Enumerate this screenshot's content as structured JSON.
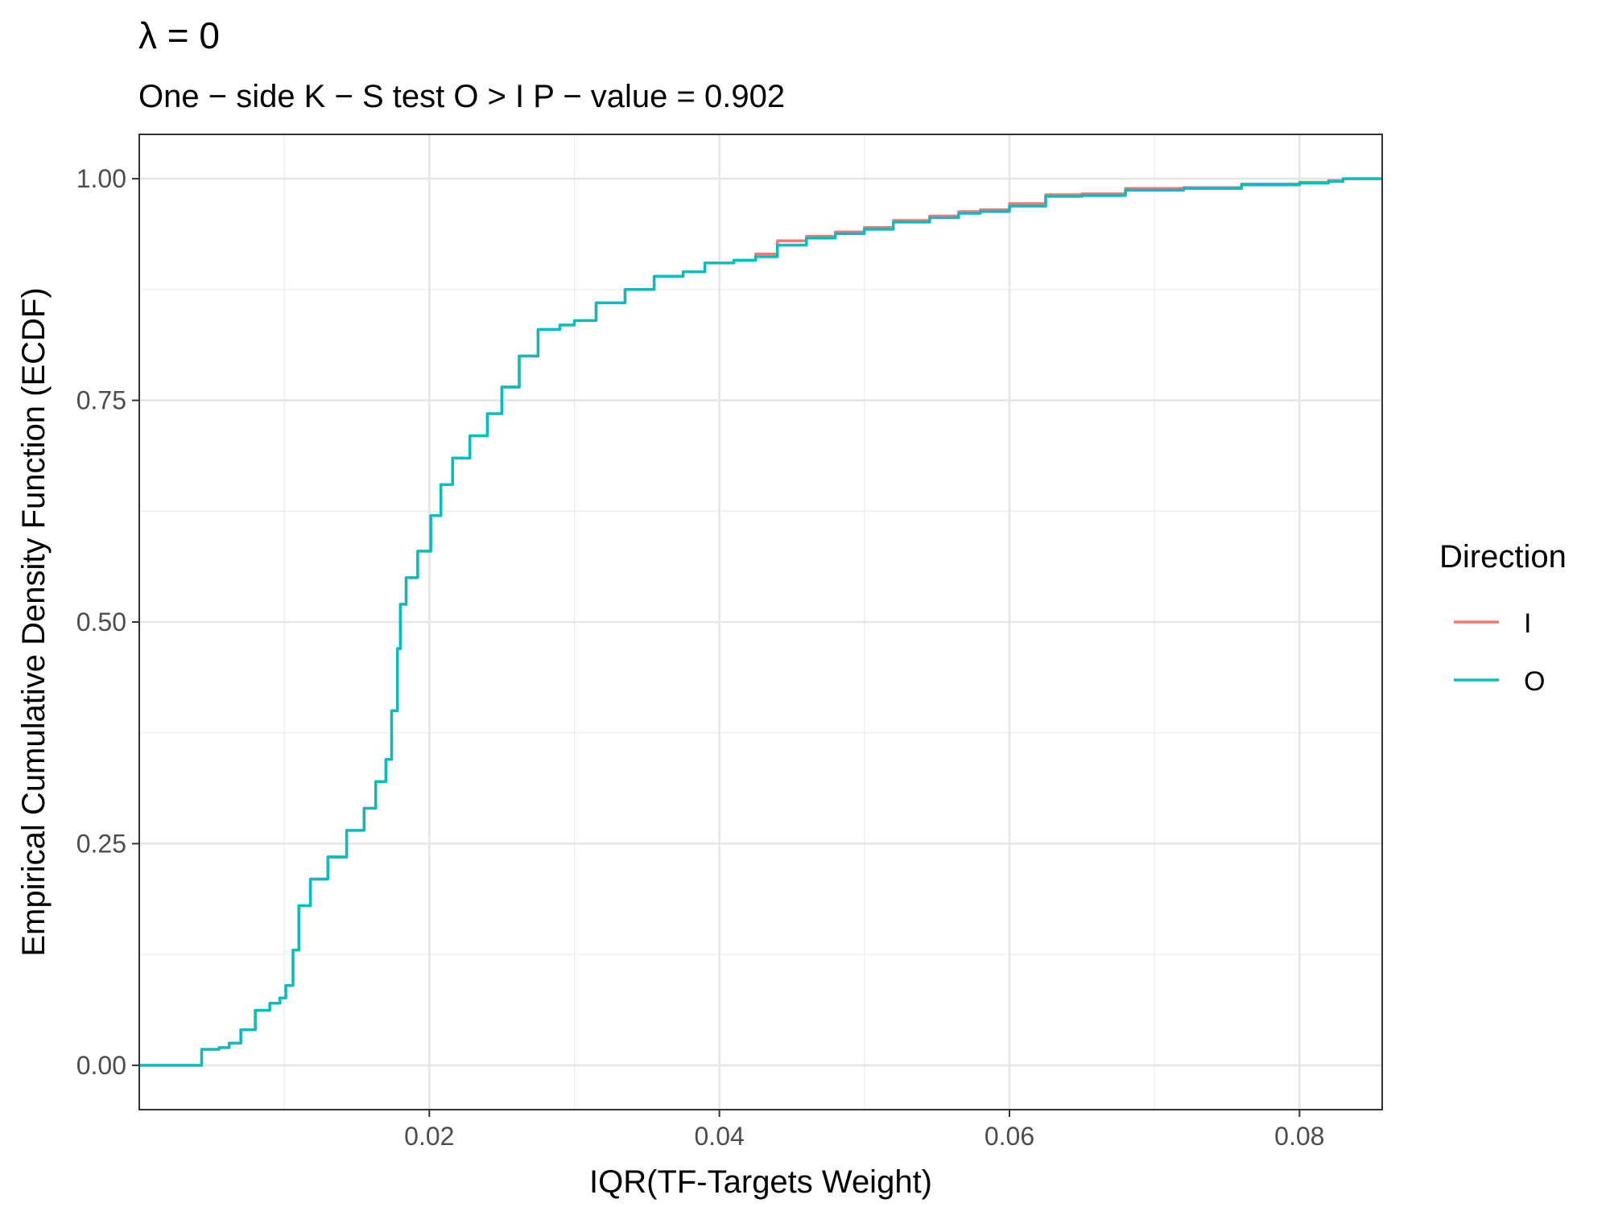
{
  "chart_data": {
    "type": "line",
    "title": "λ = 0",
    "subtitle": "One − side K − S test O > I P − value = 0.902",
    "xlabel": "IQR(TF-Targets Weight)",
    "ylabel": "Empirical Cumulative Density Function (ECDF)",
    "xlim": [
      0.0,
      0.0857
    ],
    "ylim": [
      -0.05,
      1.05
    ],
    "x_ticks": [
      0.02,
      0.04,
      0.06,
      0.08
    ],
    "x_tick_labels": [
      "0.02",
      "0.04",
      "0.06",
      "0.08"
    ],
    "y_ticks": [
      0.0,
      0.25,
      0.5,
      0.75,
      1.0
    ],
    "y_tick_labels": [
      "0.00",
      "0.25",
      "0.50",
      "0.75",
      "1.00"
    ],
    "grid": true,
    "legend": {
      "title": "Direction",
      "placement": "right",
      "entries": [
        {
          "label": "I",
          "color": "#F8766D"
        },
        {
          "label": "O",
          "color": "#00BFC4"
        }
      ]
    },
    "series": [
      {
        "name": "I",
        "color": "#F8766D",
        "points": [
          [
            0.0,
            0.0
          ],
          [
            0.0041,
            0.0
          ],
          [
            0.0043,
            0.018
          ],
          [
            0.0055,
            0.02
          ],
          [
            0.0062,
            0.025
          ],
          [
            0.007,
            0.04
          ],
          [
            0.008,
            0.062
          ],
          [
            0.009,
            0.07
          ],
          [
            0.0097,
            0.076
          ],
          [
            0.0101,
            0.09
          ],
          [
            0.0106,
            0.13
          ],
          [
            0.011,
            0.18
          ],
          [
            0.0118,
            0.21
          ],
          [
            0.013,
            0.235
          ],
          [
            0.0143,
            0.265
          ],
          [
            0.0155,
            0.29
          ],
          [
            0.0163,
            0.32
          ],
          [
            0.017,
            0.345
          ],
          [
            0.0174,
            0.4
          ],
          [
            0.0178,
            0.47
          ],
          [
            0.018,
            0.52
          ],
          [
            0.0184,
            0.55
          ],
          [
            0.0192,
            0.58
          ],
          [
            0.0201,
            0.62
          ],
          [
            0.0208,
            0.655
          ],
          [
            0.0216,
            0.685
          ],
          [
            0.0228,
            0.71
          ],
          [
            0.024,
            0.735
          ],
          [
            0.025,
            0.765
          ],
          [
            0.0262,
            0.8
          ],
          [
            0.0275,
            0.83
          ],
          [
            0.029,
            0.835
          ],
          [
            0.03,
            0.84
          ],
          [
            0.0315,
            0.86
          ],
          [
            0.0335,
            0.875
          ],
          [
            0.0355,
            0.89
          ],
          [
            0.0375,
            0.895
          ],
          [
            0.039,
            0.905
          ],
          [
            0.041,
            0.908
          ],
          [
            0.0425,
            0.915
          ],
          [
            0.044,
            0.93
          ],
          [
            0.046,
            0.935
          ],
          [
            0.048,
            0.94
          ],
          [
            0.05,
            0.945
          ],
          [
            0.052,
            0.953
          ],
          [
            0.0545,
            0.958
          ],
          [
            0.0565,
            0.963
          ],
          [
            0.058,
            0.965
          ],
          [
            0.06,
            0.972
          ],
          [
            0.0625,
            0.982
          ],
          [
            0.065,
            0.983
          ],
          [
            0.068,
            0.989
          ],
          [
            0.072,
            0.99
          ],
          [
            0.076,
            0.994
          ],
          [
            0.08,
            0.996
          ],
          [
            0.082,
            0.998
          ],
          [
            0.083,
            1.0
          ],
          [
            0.0857,
            1.0
          ]
        ]
      },
      {
        "name": "O",
        "color": "#00BFC4",
        "points": [
          [
            0.0,
            0.0
          ],
          [
            0.0041,
            0.0
          ],
          [
            0.0043,
            0.018
          ],
          [
            0.0055,
            0.02
          ],
          [
            0.0062,
            0.025
          ],
          [
            0.007,
            0.04
          ],
          [
            0.008,
            0.062
          ],
          [
            0.009,
            0.07
          ],
          [
            0.0097,
            0.076
          ],
          [
            0.0101,
            0.09
          ],
          [
            0.0106,
            0.13
          ],
          [
            0.011,
            0.18
          ],
          [
            0.0118,
            0.21
          ],
          [
            0.013,
            0.235
          ],
          [
            0.0143,
            0.265
          ],
          [
            0.0155,
            0.29
          ],
          [
            0.0163,
            0.32
          ],
          [
            0.017,
            0.345
          ],
          [
            0.0174,
            0.4
          ],
          [
            0.0178,
            0.47
          ],
          [
            0.018,
            0.52
          ],
          [
            0.0184,
            0.55
          ],
          [
            0.0192,
            0.58
          ],
          [
            0.0201,
            0.62
          ],
          [
            0.0208,
            0.655
          ],
          [
            0.0216,
            0.685
          ],
          [
            0.0228,
            0.71
          ],
          [
            0.024,
            0.735
          ],
          [
            0.025,
            0.765
          ],
          [
            0.0262,
            0.8
          ],
          [
            0.0275,
            0.83
          ],
          [
            0.029,
            0.835
          ],
          [
            0.03,
            0.84
          ],
          [
            0.0315,
            0.86
          ],
          [
            0.0335,
            0.875
          ],
          [
            0.0355,
            0.89
          ],
          [
            0.0375,
            0.895
          ],
          [
            0.039,
            0.905
          ],
          [
            0.041,
            0.908
          ],
          [
            0.0425,
            0.912
          ],
          [
            0.044,
            0.925
          ],
          [
            0.046,
            0.933
          ],
          [
            0.048,
            0.938
          ],
          [
            0.05,
            0.943
          ],
          [
            0.052,
            0.951
          ],
          [
            0.0545,
            0.956
          ],
          [
            0.0565,
            0.961
          ],
          [
            0.058,
            0.963
          ],
          [
            0.06,
            0.969
          ],
          [
            0.0625,
            0.98
          ],
          [
            0.065,
            0.981
          ],
          [
            0.068,
            0.987
          ],
          [
            0.072,
            0.989
          ],
          [
            0.076,
            0.993
          ],
          [
            0.08,
            0.995
          ],
          [
            0.082,
            0.997
          ],
          [
            0.083,
            1.0
          ],
          [
            0.0857,
            1.0
          ]
        ]
      }
    ]
  }
}
